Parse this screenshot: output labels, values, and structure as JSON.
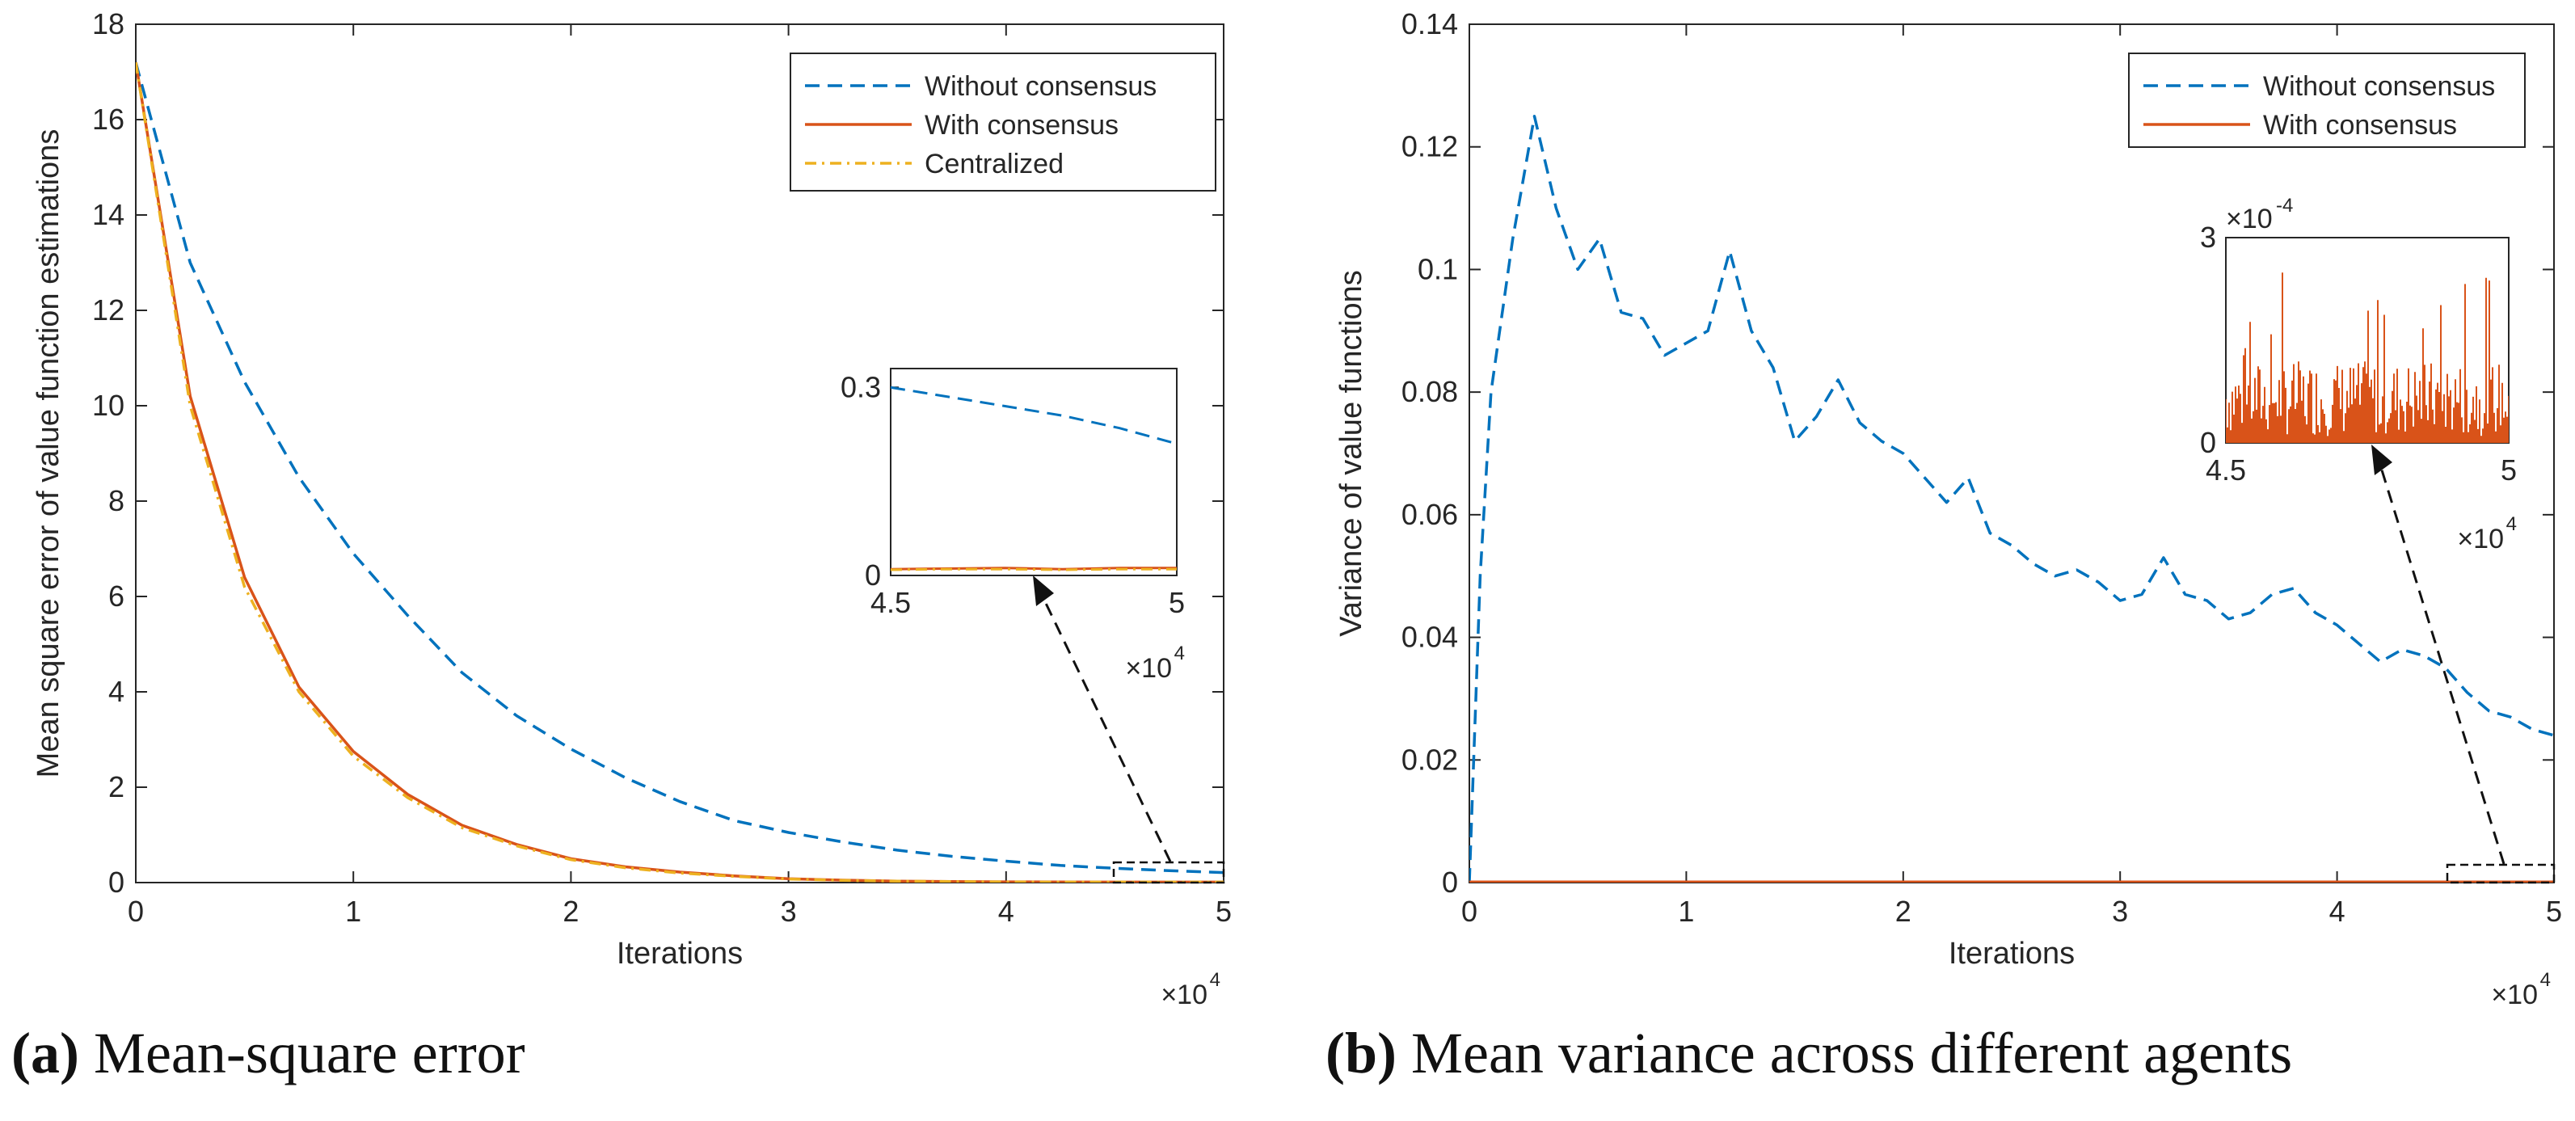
{
  "figure": {
    "caption_a_tag": "(a)",
    "caption_a_text": "Mean-square error",
    "caption_b_tag": "(b)",
    "caption_b_text": "Mean variance across different agents"
  },
  "colors": {
    "without": "#0072BD",
    "with": "#D95319",
    "centralized": "#EDB120"
  },
  "chart_data": [
    {
      "type": "line",
      "panel": "a",
      "xlabel": "Iterations",
      "ylabel": "Mean square error of value function estimations",
      "x_multiplier_base": "×10",
      "x_multiplier_exp": "4",
      "xlim": [
        0,
        5
      ],
      "ylim": [
        0,
        18
      ],
      "xticks": [
        "0",
        "1",
        "2",
        "3",
        "4",
        "5"
      ],
      "yticks": [
        "0",
        "2",
        "4",
        "6",
        "8",
        "10",
        "12",
        "14",
        "16",
        "18"
      ],
      "legend_position": "top-right",
      "legend": [
        "Without consensus",
        "With consensus",
        "Centralized"
      ],
      "series": [
        {
          "name": "Without consensus",
          "style": "dashed",
          "color": "#0072BD",
          "x": [
            0,
            0.25,
            0.5,
            0.75,
            1.0,
            1.25,
            1.5,
            1.75,
            2.0,
            2.25,
            2.5,
            2.75,
            3.0,
            3.25,
            3.5,
            3.75,
            4.0,
            4.25,
            4.5,
            4.75,
            5.0
          ],
          "y": [
            17.2,
            13.0,
            10.5,
            8.5,
            6.9,
            5.6,
            4.4,
            3.5,
            2.8,
            2.2,
            1.7,
            1.3,
            1.05,
            0.85,
            0.68,
            0.55,
            0.45,
            0.36,
            0.3,
            0.25,
            0.21
          ]
        },
        {
          "name": "With consensus",
          "style": "solid",
          "color": "#D95319",
          "x": [
            0,
            0.25,
            0.5,
            0.75,
            1.0,
            1.25,
            1.5,
            1.75,
            2.0,
            2.25,
            2.5,
            2.75,
            3.0,
            3.25,
            3.5,
            3.75,
            4.0,
            4.25,
            4.5,
            4.75,
            5.0
          ],
          "y": [
            17.2,
            10.2,
            6.4,
            4.1,
            2.75,
            1.85,
            1.2,
            0.8,
            0.5,
            0.33,
            0.22,
            0.14,
            0.08,
            0.05,
            0.03,
            0.02,
            0.015,
            0.012,
            0.01,
            0.01,
            0.01
          ]
        },
        {
          "name": "Centralized",
          "style": "dashdot",
          "color": "#EDB120",
          "x": [
            0,
            0.25,
            0.5,
            0.75,
            1.0,
            1.25,
            1.5,
            1.75,
            2.0,
            2.25,
            2.5,
            2.75,
            3.0,
            3.25,
            3.5,
            3.75,
            4.0,
            4.25,
            4.5,
            4.75,
            5.0
          ],
          "y": [
            17.2,
            10.0,
            6.2,
            4.0,
            2.65,
            1.78,
            1.15,
            0.77,
            0.48,
            0.31,
            0.2,
            0.13,
            0.075,
            0.045,
            0.03,
            0.02,
            0.014,
            0.011,
            0.01,
            0.01,
            0.01
          ]
        }
      ],
      "inset": {
        "xlim": [
          4.5,
          5
        ],
        "ylim": [
          0,
          0.33
        ],
        "xticks": [
          "4.5",
          "5"
        ],
        "yticks": [
          "0",
          "0.3"
        ],
        "x_multiplier_base": "×10",
        "x_multiplier_exp": "4",
        "series": [
          {
            "name": "Without consensus",
            "x": [
              4.5,
              4.6,
              4.7,
              4.8,
              4.9,
              5.0
            ],
            "y": [
              0.3,
              0.285,
              0.27,
              0.255,
              0.235,
              0.21
            ]
          },
          {
            "name": "With consensus",
            "x": [
              4.5,
              4.6,
              4.7,
              4.8,
              4.9,
              5.0
            ],
            "y": [
              0.01,
              0.011,
              0.012,
              0.01,
              0.012,
              0.012
            ]
          },
          {
            "name": "Centralized",
            "x": [
              4.5,
              4.6,
              4.7,
              4.8,
              4.9,
              5.0
            ],
            "y": [
              0.009,
              0.01,
              0.01,
              0.009,
              0.01,
              0.01
            ]
          }
        ]
      }
    },
    {
      "type": "line",
      "panel": "b",
      "xlabel": "Iterations",
      "ylabel": "Variance of value functions",
      "x_multiplier_base": "×10",
      "x_multiplier_exp": "4",
      "xlim": [
        0,
        5
      ],
      "ylim": [
        0,
        0.14
      ],
      "xticks": [
        "0",
        "1",
        "2",
        "3",
        "4",
        "5"
      ],
      "yticks": [
        "0",
        "0.02",
        "0.04",
        "0.06",
        "0.08",
        "0.1",
        "0.12",
        "0.14"
      ],
      "legend_position": "top-right",
      "legend": [
        "Without consensus",
        "With consensus"
      ],
      "series": [
        {
          "name": "Without consensus",
          "style": "dashed",
          "color": "#0072BD",
          "x": [
            0,
            0.05,
            0.1,
            0.2,
            0.3,
            0.4,
            0.5,
            0.6,
            0.7,
            0.8,
            0.9,
            1.0,
            1.1,
            1.2,
            1.3,
            1.4,
            1.5,
            1.6,
            1.7,
            1.8,
            1.9,
            2.0,
            2.1,
            2.2,
            2.3,
            2.4,
            2.5,
            2.6,
            2.7,
            2.8,
            2.9,
            3.0,
            3.1,
            3.2,
            3.3,
            3.4,
            3.5,
            3.6,
            3.7,
            3.8,
            3.9,
            4.0,
            4.1,
            4.2,
            4.3,
            4.4,
            4.5,
            4.6,
            4.7,
            4.8,
            4.9,
            5.0
          ],
          "y": [
            0.0,
            0.05,
            0.08,
            0.105,
            0.125,
            0.11,
            0.1,
            0.105,
            0.093,
            0.092,
            0.086,
            0.088,
            0.09,
            0.103,
            0.09,
            0.084,
            0.072,
            0.076,
            0.082,
            0.075,
            0.072,
            0.07,
            0.066,
            0.062,
            0.066,
            0.057,
            0.055,
            0.052,
            0.05,
            0.051,
            0.049,
            0.046,
            0.047,
            0.053,
            0.047,
            0.046,
            0.043,
            0.044,
            0.047,
            0.048,
            0.044,
            0.042,
            0.039,
            0.036,
            0.038,
            0.037,
            0.035,
            0.031,
            0.028,
            0.027,
            0.025,
            0.024
          ]
        },
        {
          "name": "With consensus",
          "style": "solid",
          "color": "#D95319",
          "x": [
            0,
            5
          ],
          "y": [
            0.0001,
            0.0001
          ]
        }
      ],
      "inset": {
        "xlim": [
          4.5,
          5
        ],
        "ylim_label_exponent": "-4",
        "ylim": [
          0,
          3
        ],
        "xticks": [
          "4.5",
          "5"
        ],
        "yticks": [
          "0",
          "3"
        ],
        "x_multiplier_base": "×10",
        "x_multiplier_exp": "4",
        "y_multiplier_base": "×10",
        "series": [
          {
            "name": "With consensus",
            "x": [
              4.5,
              5.0
            ],
            "y_baseline": 0.1,
            "y_typical": 1.1,
            "y_max": 2.6
          }
        ]
      }
    }
  ]
}
